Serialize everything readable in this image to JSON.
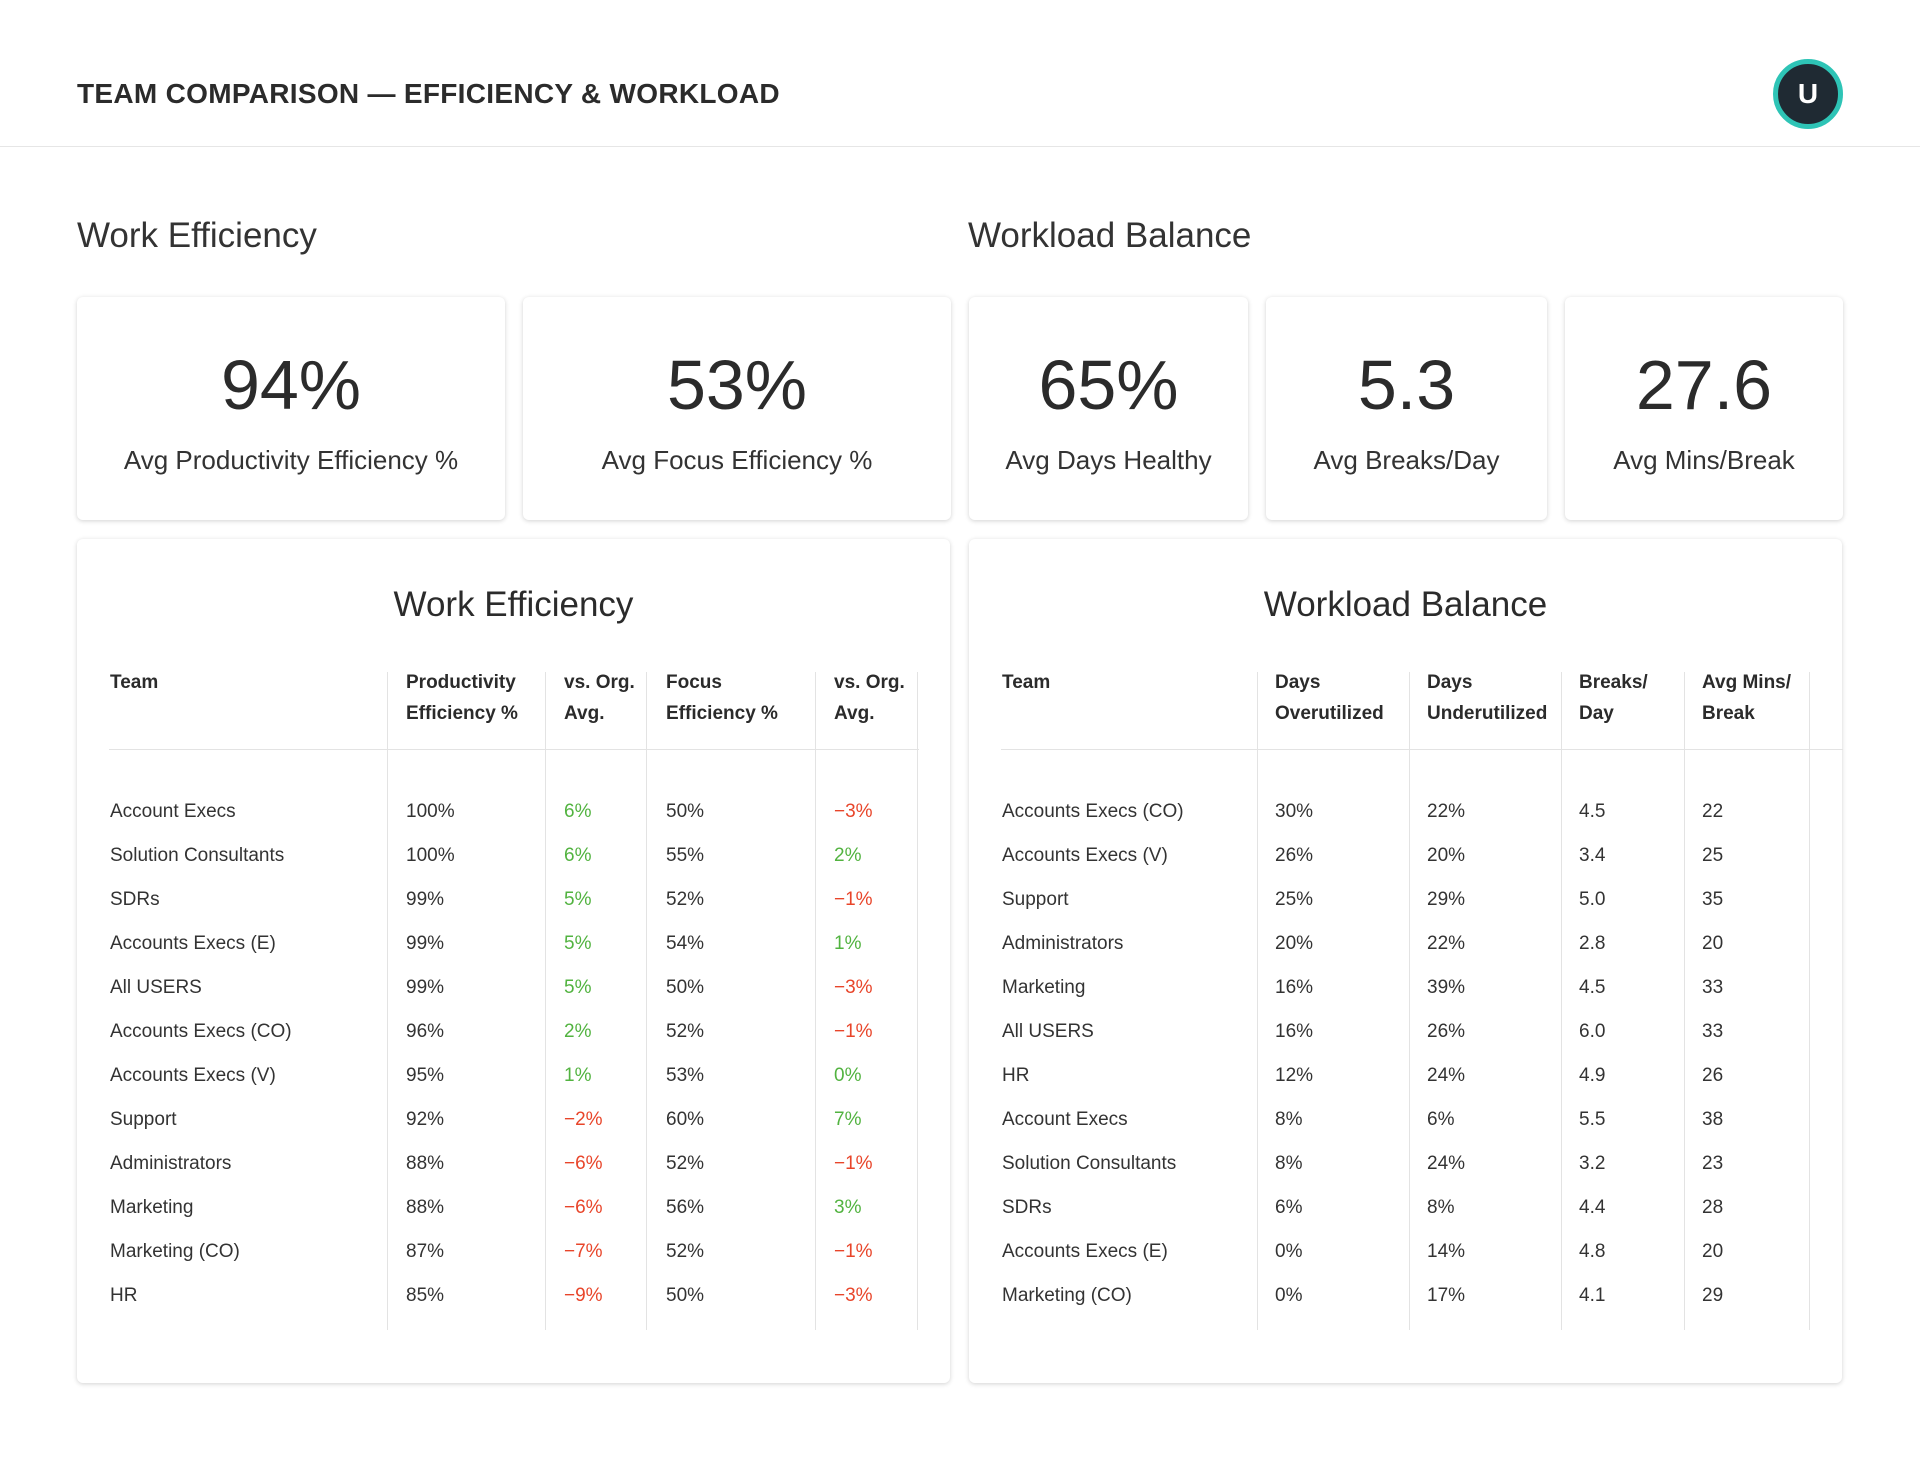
{
  "header": {
    "title": "TEAM COMPARISON — EFFICIENCY & WORKLOAD",
    "avatar_initial": "U"
  },
  "sections": {
    "efficiency_title": "Work Efficiency",
    "workload_title": "Workload Balance"
  },
  "kpis": [
    {
      "value": "94%",
      "label": "Avg Productivity Efficiency %"
    },
    {
      "value": "53%",
      "label": "Avg Focus Efficiency %"
    },
    {
      "value": "65%",
      "label": "Avg Days Healthy"
    },
    {
      "value": "5.3",
      "label": "Avg Breaks/Day"
    },
    {
      "value": "27.6",
      "label": "Avg Mins/Break"
    }
  ],
  "efficiency_table": {
    "title": "Work Efficiency",
    "columns": [
      "Team",
      "Productivity\nEfficiency %",
      "vs. Org.\nAvg.",
      "Focus\nEfficiency %",
      "vs. Org.\nAvg."
    ],
    "rows": [
      [
        "Account Execs",
        "100%",
        "6%",
        "50%",
        "−3%"
      ],
      [
        "Solution Consultants",
        "100%",
        "6%",
        "55%",
        "2%"
      ],
      [
        "SDRs",
        "99%",
        "5%",
        "52%",
        "−1%"
      ],
      [
        "Accounts Execs (E)",
        "99%",
        "5%",
        "54%",
        "1%"
      ],
      [
        "All USERS",
        "99%",
        "5%",
        "50%",
        "−3%"
      ],
      [
        "Accounts Execs (CO)",
        "96%",
        "2%",
        "52%",
        "−1%"
      ],
      [
        "Accounts Execs (V)",
        "95%",
        "1%",
        "53%",
        "0%"
      ],
      [
        "Support",
        "92%",
        "−2%",
        "60%",
        "7%"
      ],
      [
        "Administrators",
        "88%",
        "−6%",
        "52%",
        "−1%"
      ],
      [
        "Marketing",
        "88%",
        "−6%",
        "56%",
        "3%"
      ],
      [
        "Marketing (CO)",
        "87%",
        "−7%",
        "52%",
        "−1%"
      ],
      [
        "HR",
        "85%",
        "−9%",
        "50%",
        "−3%"
      ]
    ],
    "delta_signs": [
      [
        "pos",
        "neg"
      ],
      [
        "pos",
        "pos"
      ],
      [
        "pos",
        "neg"
      ],
      [
        "pos",
        "pos"
      ],
      [
        "pos",
        "neg"
      ],
      [
        "pos",
        "neg"
      ],
      [
        "pos",
        "pos"
      ],
      [
        "neg",
        "pos"
      ],
      [
        "neg",
        "neg"
      ],
      [
        "neg",
        "pos"
      ],
      [
        "neg",
        "neg"
      ],
      [
        "neg",
        "neg"
      ]
    ]
  },
  "workload_table": {
    "title": "Workload Balance",
    "columns": [
      "Team",
      "Days\nOverutilized",
      "Days\nUnderutilized",
      "Breaks/\nDay",
      "Avg Mins/\nBreak"
    ],
    "rows": [
      [
        "Accounts Execs (CO)",
        "30%",
        "22%",
        "4.5",
        "22"
      ],
      [
        "Accounts Execs (V)",
        "26%",
        "20%",
        "3.4",
        "25"
      ],
      [
        "Support",
        "25%",
        "29%",
        "5.0",
        "35"
      ],
      [
        "Administrators",
        "20%",
        "22%",
        "2.8",
        "20"
      ],
      [
        "Marketing",
        "16%",
        "39%",
        "4.5",
        "33"
      ],
      [
        "All USERS",
        "16%",
        "26%",
        "6.0",
        "33"
      ],
      [
        "HR",
        "12%",
        "24%",
        "4.9",
        "26"
      ],
      [
        "Account Execs",
        "8%",
        "6%",
        "5.5",
        "38"
      ],
      [
        "Solution Consultants",
        "8%",
        "24%",
        "3.2",
        "23"
      ],
      [
        "SDRs",
        "6%",
        "8%",
        "4.4",
        "28"
      ],
      [
        "Accounts Execs (E)",
        "0%",
        "14%",
        "4.8",
        "20"
      ],
      [
        "Marketing (CO)",
        "0%",
        "17%",
        "4.1",
        "29"
      ]
    ]
  },
  "colors": {
    "positive": "#52b340",
    "negative": "#e8452a",
    "avatar_ring": "#2ec4b6",
    "avatar_bg": "#1f2a33"
  }
}
